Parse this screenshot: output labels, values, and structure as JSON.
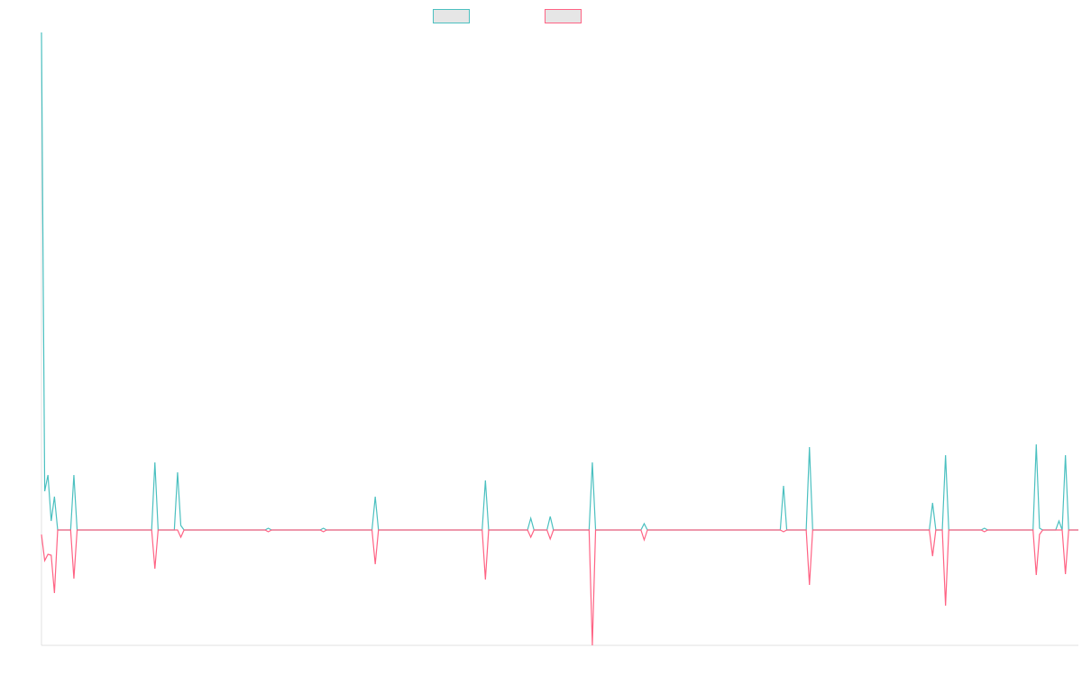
{
  "chart_data": {
    "type": "line",
    "x": [
      0,
      1,
      2,
      3,
      4,
      5,
      9,
      10,
      11,
      34,
      35,
      36,
      41,
      42,
      43,
      44,
      69,
      70,
      71,
      86,
      87,
      88,
      102,
      103,
      104,
      136,
      137,
      138,
      150,
      151,
      152,
      156,
      157,
      158,
      169,
      170,
      171,
      185,
      186,
      187,
      228,
      229,
      230,
      236,
      237,
      238,
      274,
      275,
      276,
      278,
      279,
      280,
      290,
      291,
      292,
      306,
      307,
      308,
      309,
      313,
      314,
      315,
      316,
      317,
      320
    ],
    "xlim": [
      0,
      320
    ],
    "ylim": [
      -128,
      552
    ],
    "series": [
      {
        "color": "#4bc0c0",
        "values": [
          552,
          43,
          61,
          10,
          37,
          0,
          0,
          61,
          0,
          0,
          75,
          0,
          0,
          64,
          5,
          0,
          0,
          2,
          0,
          0,
          2,
          0,
          0,
          37,
          0,
          0,
          55,
          0,
          0,
          13,
          0,
          0,
          15,
          0,
          0,
          75,
          0,
          0,
          7,
          0,
          0,
          49,
          0,
          0,
          92,
          0,
          0,
          30,
          0,
          0,
          83,
          0,
          0,
          2,
          0,
          0,
          95,
          2,
          0,
          0,
          10,
          0,
          83,
          0,
          0
        ]
      },
      {
        "color": "#ff6384",
        "values": [
          -5,
          -34,
          -27,
          -28,
          -70,
          0,
          0,
          -54,
          0,
          0,
          -43,
          0,
          0,
          0,
          -8,
          0,
          0,
          -2,
          0,
          0,
          -2,
          0,
          0,
          -38,
          0,
          0,
          -55,
          0,
          0,
          -8,
          0,
          0,
          -10,
          0,
          0,
          -128,
          0,
          0,
          -11,
          0,
          0,
          -2,
          0,
          0,
          -61,
          0,
          0,
          -29,
          0,
          0,
          -84,
          0,
          0,
          -2,
          0,
          0,
          -50,
          -5,
          0,
          0,
          0,
          0,
          -49,
          0,
          0
        ]
      }
    ]
  }
}
